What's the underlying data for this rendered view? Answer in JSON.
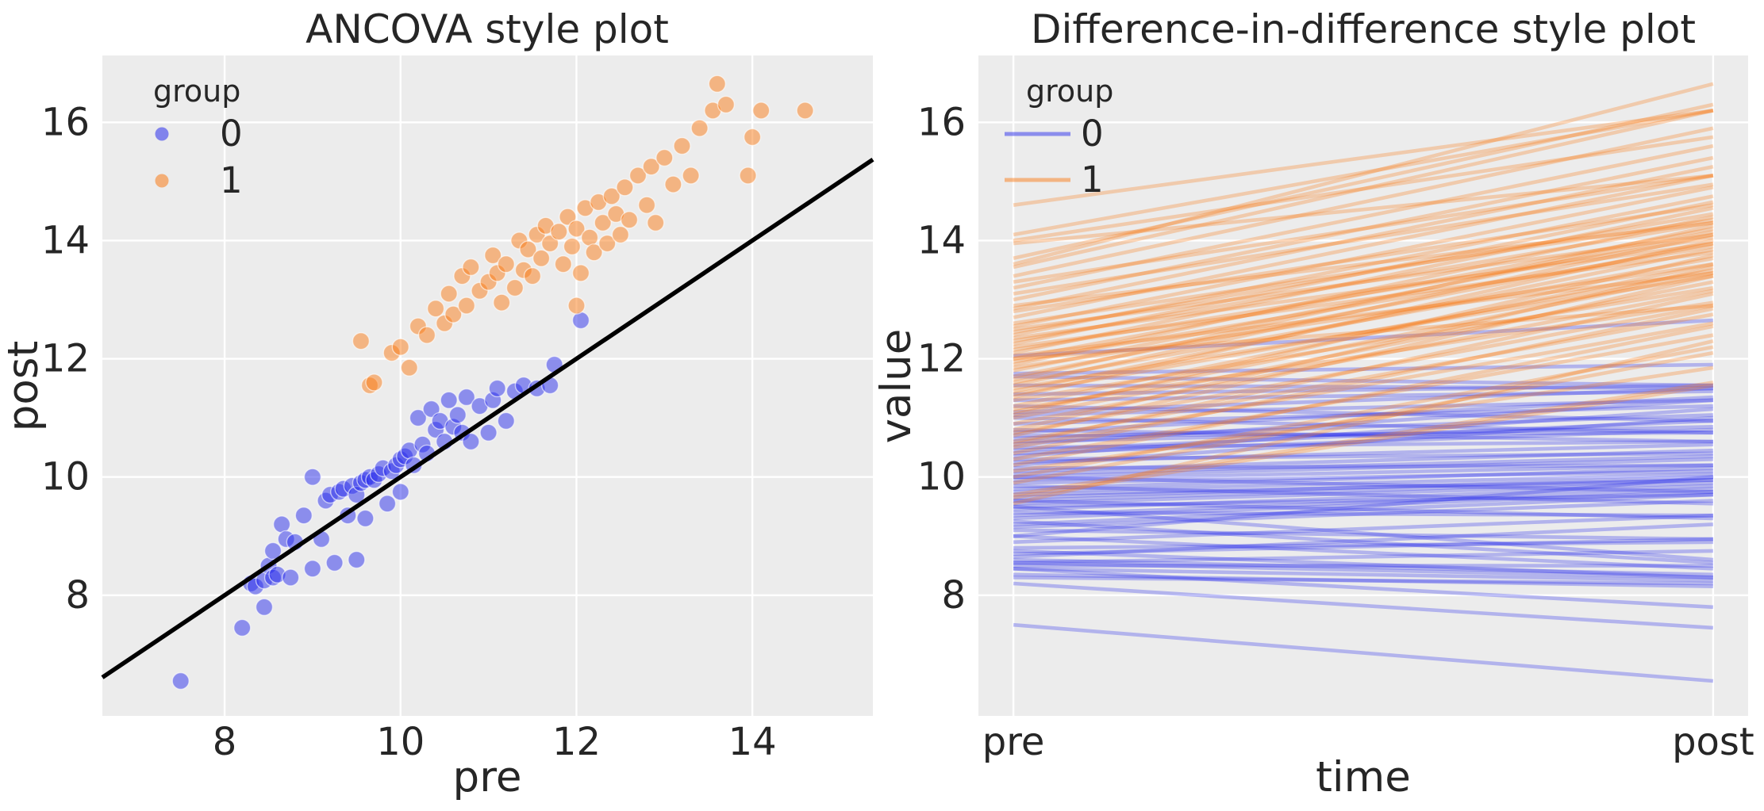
{
  "figure": {
    "background": "#ffffff",
    "axes_background": "#ececec",
    "grid_color": "#ffffff",
    "text_color": "#262626",
    "group_colors": {
      "0": "#2a2eec",
      "1": "#fa7c17"
    },
    "identity_line_color": "#000000"
  },
  "chart_data": [
    {
      "type": "scatter",
      "title": "ANCOVA style plot",
      "xlabel": "pre",
      "ylabel": "post",
      "xticks": [
        8,
        10,
        12,
        14
      ],
      "yticks": [
        8,
        10,
        12,
        14,
        16
      ],
      "xlim": [
        6.61,
        15.37
      ],
      "ylim": [
        5.96,
        17.13
      ],
      "grid": true,
      "legend": {
        "title": "group",
        "position": "upper left",
        "entries": [
          "0",
          "1"
        ]
      },
      "identity_line": {
        "description": "black diagonal line y = x across full x range",
        "color": "#000000"
      },
      "series": [
        {
          "name": "0",
          "color": "#2a2eec",
          "alpha": 0.5,
          "points_pre_post": [
            [
              7.5,
              6.55
            ],
            [
              8.2,
              7.45
            ],
            [
              8.3,
              8.2
            ],
            [
              8.35,
              8.15
            ],
            [
              8.45,
              8.25
            ],
            [
              8.45,
              7.8
            ],
            [
              8.5,
              8.5
            ],
            [
              8.55,
              8.75
            ],
            [
              8.55,
              8.3
            ],
            [
              8.6,
              8.35
            ],
            [
              8.65,
              9.2
            ],
            [
              8.7,
              8.95
            ],
            [
              8.75,
              8.3
            ],
            [
              8.8,
              8.9
            ],
            [
              8.9,
              9.35
            ],
            [
              9.0,
              8.45
            ],
            [
              9.0,
              10.0
            ],
            [
              9.1,
              8.95
            ],
            [
              9.15,
              9.6
            ],
            [
              9.2,
              9.7
            ],
            [
              9.25,
              8.55
            ],
            [
              9.3,
              9.75
            ],
            [
              9.35,
              9.8
            ],
            [
              9.4,
              9.35
            ],
            [
              9.45,
              9.85
            ],
            [
              9.5,
              9.7
            ],
            [
              9.5,
              8.6
            ],
            [
              9.55,
              9.9
            ],
            [
              9.6,
              9.95
            ],
            [
              9.6,
              9.3
            ],
            [
              9.65,
              10.0
            ],
            [
              9.7,
              9.95
            ],
            [
              9.75,
              10.05
            ],
            [
              9.8,
              10.15
            ],
            [
              9.85,
              9.55
            ],
            [
              9.9,
              10.1
            ],
            [
              9.95,
              10.2
            ],
            [
              10.0,
              10.3
            ],
            [
              10.0,
              9.75
            ],
            [
              10.05,
              10.35
            ],
            [
              10.1,
              10.45
            ],
            [
              10.15,
              10.2
            ],
            [
              10.2,
              11.0
            ],
            [
              10.25,
              10.55
            ],
            [
              10.3,
              10.4
            ],
            [
              10.35,
              11.15
            ],
            [
              10.4,
              10.8
            ],
            [
              10.45,
              10.95
            ],
            [
              10.5,
              10.6
            ],
            [
              10.55,
              11.3
            ],
            [
              10.6,
              10.85
            ],
            [
              10.65,
              11.05
            ],
            [
              10.7,
              10.75
            ],
            [
              10.75,
              11.35
            ],
            [
              10.8,
              10.6
            ],
            [
              10.9,
              11.2
            ],
            [
              11.0,
              10.75
            ],
            [
              11.05,
              11.3
            ],
            [
              11.1,
              11.5
            ],
            [
              11.2,
              10.95
            ],
            [
              11.3,
              11.45
            ],
            [
              11.4,
              11.55
            ],
            [
              11.55,
              11.5
            ],
            [
              11.7,
              11.55
            ],
            [
              11.75,
              11.9
            ],
            [
              12.05,
              12.65
            ]
          ]
        },
        {
          "name": "1",
          "color": "#fa7c17",
          "alpha": 0.5,
          "points_pre_post": [
            [
              9.55,
              12.3
            ],
            [
              9.65,
              11.55
            ],
            [
              9.7,
              11.6
            ],
            [
              9.9,
              12.1
            ],
            [
              10.0,
              12.2
            ],
            [
              10.1,
              11.85
            ],
            [
              10.2,
              12.55
            ],
            [
              10.3,
              12.4
            ],
            [
              10.4,
              12.85
            ],
            [
              10.5,
              12.6
            ],
            [
              10.55,
              13.1
            ],
            [
              10.6,
              12.75
            ],
            [
              10.7,
              13.4
            ],
            [
              10.75,
              12.9
            ],
            [
              10.8,
              13.55
            ],
            [
              10.9,
              13.15
            ],
            [
              11.0,
              13.3
            ],
            [
              11.05,
              13.75
            ],
            [
              11.1,
              13.45
            ],
            [
              11.15,
              12.95
            ],
            [
              11.2,
              13.6
            ],
            [
              11.3,
              13.2
            ],
            [
              11.35,
              14.0
            ],
            [
              11.4,
              13.5
            ],
            [
              11.45,
              13.85
            ],
            [
              11.5,
              13.4
            ],
            [
              11.55,
              14.1
            ],
            [
              11.6,
              13.7
            ],
            [
              11.65,
              14.25
            ],
            [
              11.7,
              13.95
            ],
            [
              11.8,
              14.15
            ],
            [
              11.85,
              13.6
            ],
            [
              11.9,
              14.4
            ],
            [
              11.95,
              13.9
            ],
            [
              12.0,
              14.2
            ],
            [
              12.0,
              12.9
            ],
            [
              12.05,
              13.45
            ],
            [
              12.1,
              14.55
            ],
            [
              12.15,
              14.05
            ],
            [
              12.2,
              13.8
            ],
            [
              12.25,
              14.65
            ],
            [
              12.3,
              14.3
            ],
            [
              12.35,
              13.95
            ],
            [
              12.4,
              14.75
            ],
            [
              12.45,
              14.45
            ],
            [
              12.5,
              14.1
            ],
            [
              12.55,
              14.9
            ],
            [
              12.6,
              14.35
            ],
            [
              12.7,
              15.1
            ],
            [
              12.8,
              14.6
            ],
            [
              12.85,
              15.25
            ],
            [
              12.9,
              14.3
            ],
            [
              13.0,
              15.4
            ],
            [
              13.1,
              14.95
            ],
            [
              13.2,
              15.6
            ],
            [
              13.3,
              15.1
            ],
            [
              13.4,
              15.9
            ],
            [
              13.55,
              16.2
            ],
            [
              13.6,
              16.65
            ],
            [
              13.7,
              16.3
            ],
            [
              13.95,
              15.1
            ],
            [
              14.0,
              15.75
            ],
            [
              14.1,
              16.2
            ],
            [
              14.6,
              16.2
            ]
          ]
        }
      ]
    },
    {
      "type": "line",
      "title": "Difference-in-difference style plot",
      "xlabel": "time",
      "ylabel": "value",
      "categories": [
        "pre",
        "post"
      ],
      "yticks": [
        8,
        10,
        12,
        14,
        16
      ],
      "ylim": [
        5.96,
        17.13
      ],
      "grid": true,
      "legend": {
        "title": "group",
        "position": "upper left",
        "entries": [
          "0",
          "1"
        ]
      },
      "description": "one semi-transparent line per unit connecting its pre value to its post value; same units as panel 0",
      "series_from_panel": 0,
      "line_alpha": 0.3
    }
  ]
}
